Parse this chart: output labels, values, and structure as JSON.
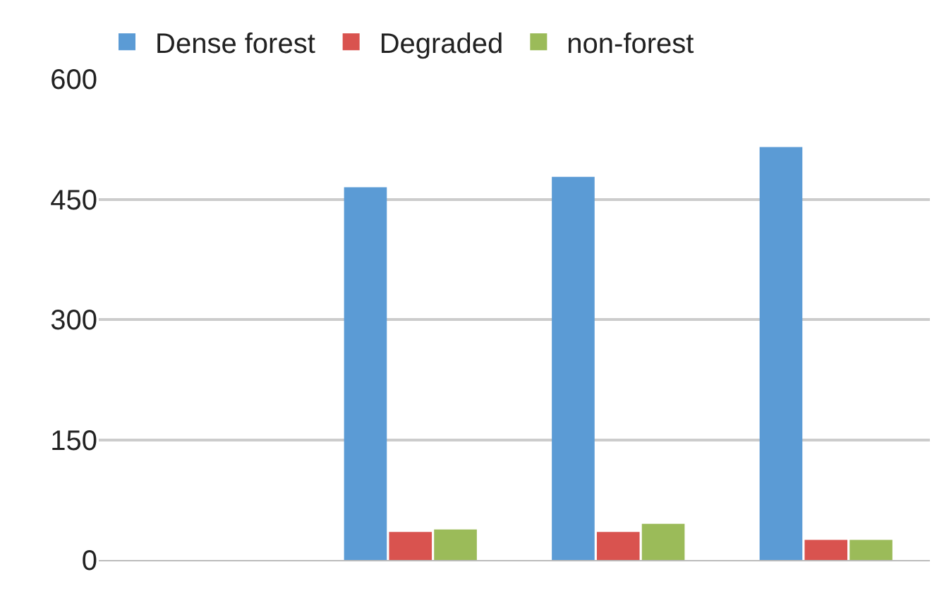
{
  "chart_data": {
    "type": "bar",
    "categories": [
      null,
      null,
      null,
      null
    ],
    "series": [
      {
        "name": "Dense forest",
        "color": "#5b9bd5",
        "values": [
          null,
          465,
          478,
          515
        ]
      },
      {
        "name": "Degraded",
        "color": "#d9534f",
        "values": [
          null,
          35,
          35,
          25
        ]
      },
      {
        "name": "non-forest",
        "color": "#9bbb59",
        "values": [
          null,
          38,
          45,
          25
        ]
      }
    ],
    "ylim": [
      0,
      600
    ],
    "yticks": [
      0,
      150,
      300,
      450,
      600
    ],
    "grid": "y",
    "legend": "top left",
    "tick_labels": "y"
  }
}
